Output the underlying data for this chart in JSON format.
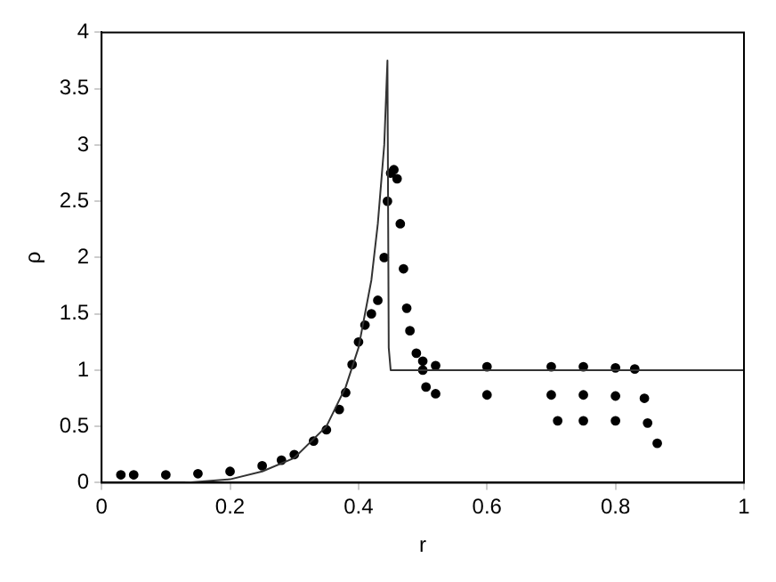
{
  "chart_data": {
    "type": "scatter",
    "xlabel": "r",
    "ylabel": "ρ",
    "xlim": [
      0,
      1
    ],
    "ylim": [
      0,
      4
    ],
    "xticks": [
      0,
      0.2,
      0.4,
      0.6,
      0.8,
      1
    ],
    "yticks": [
      0,
      0.5,
      1,
      1.5,
      2,
      2.5,
      3,
      3.5,
      4
    ],
    "grid": false,
    "legend": false,
    "series": [
      {
        "type": "line",
        "color": "#333333",
        "marker": "none",
        "line_style": "solid",
        "x": [
          0.13,
          0.2,
          0.25,
          0.3,
          0.35,
          0.38,
          0.4,
          0.42,
          0.43,
          0.44,
          0.445,
          0.447,
          0.45,
          0.6,
          0.8,
          1
        ],
        "values": [
          0,
          0.03,
          0.1,
          0.22,
          0.5,
          0.85,
          1.2,
          1.8,
          2.3,
          3.0,
          3.75,
          1.2,
          1.0,
          1.0,
          1.0,
          1.0
        ]
      },
      {
        "color": "#000000",
        "marker": "circle",
        "x": [
          0.03,
          0.05,
          0.1,
          0.15,
          0.2,
          0.25,
          0.28,
          0.3,
          0.33,
          0.35,
          0.37,
          0.38,
          0.39,
          0.4,
          0.41,
          0.42,
          0.43,
          0.44,
          0.445,
          0.45,
          0.455,
          0.46,
          0.465,
          0.47,
          0.475,
          0.48,
          0.49,
          0.5,
          0.52,
          0.6,
          0.7,
          0.75,
          0.8,
          0.83
        ],
        "values": [
          0.07,
          0.07,
          0.07,
          0.08,
          0.1,
          0.15,
          0.2,
          0.25,
          0.37,
          0.47,
          0.65,
          0.8,
          1.05,
          1.25,
          1.4,
          1.5,
          1.62,
          2.0,
          2.5,
          2.75,
          2.78,
          2.7,
          2.3,
          1.9,
          1.55,
          1.35,
          1.15,
          1.08,
          1.04,
          1.03,
          1.03,
          1.03,
          1.02,
          1.01
        ]
      },
      {
        "color": "#000000",
        "marker": "circle",
        "x": [
          0.5,
          0.505,
          0.52,
          0.6,
          0.7,
          0.75,
          0.8,
          0.845
        ],
        "values": [
          1.0,
          0.85,
          0.79,
          0.78,
          0.78,
          0.78,
          0.77,
          0.75
        ]
      },
      {
        "color": "#000000",
        "marker": "circle",
        "x": [
          0.71,
          0.75,
          0.8,
          0.85,
          0.865
        ],
        "values": [
          0.55,
          0.55,
          0.55,
          0.53,
          0.35
        ]
      }
    ]
  }
}
